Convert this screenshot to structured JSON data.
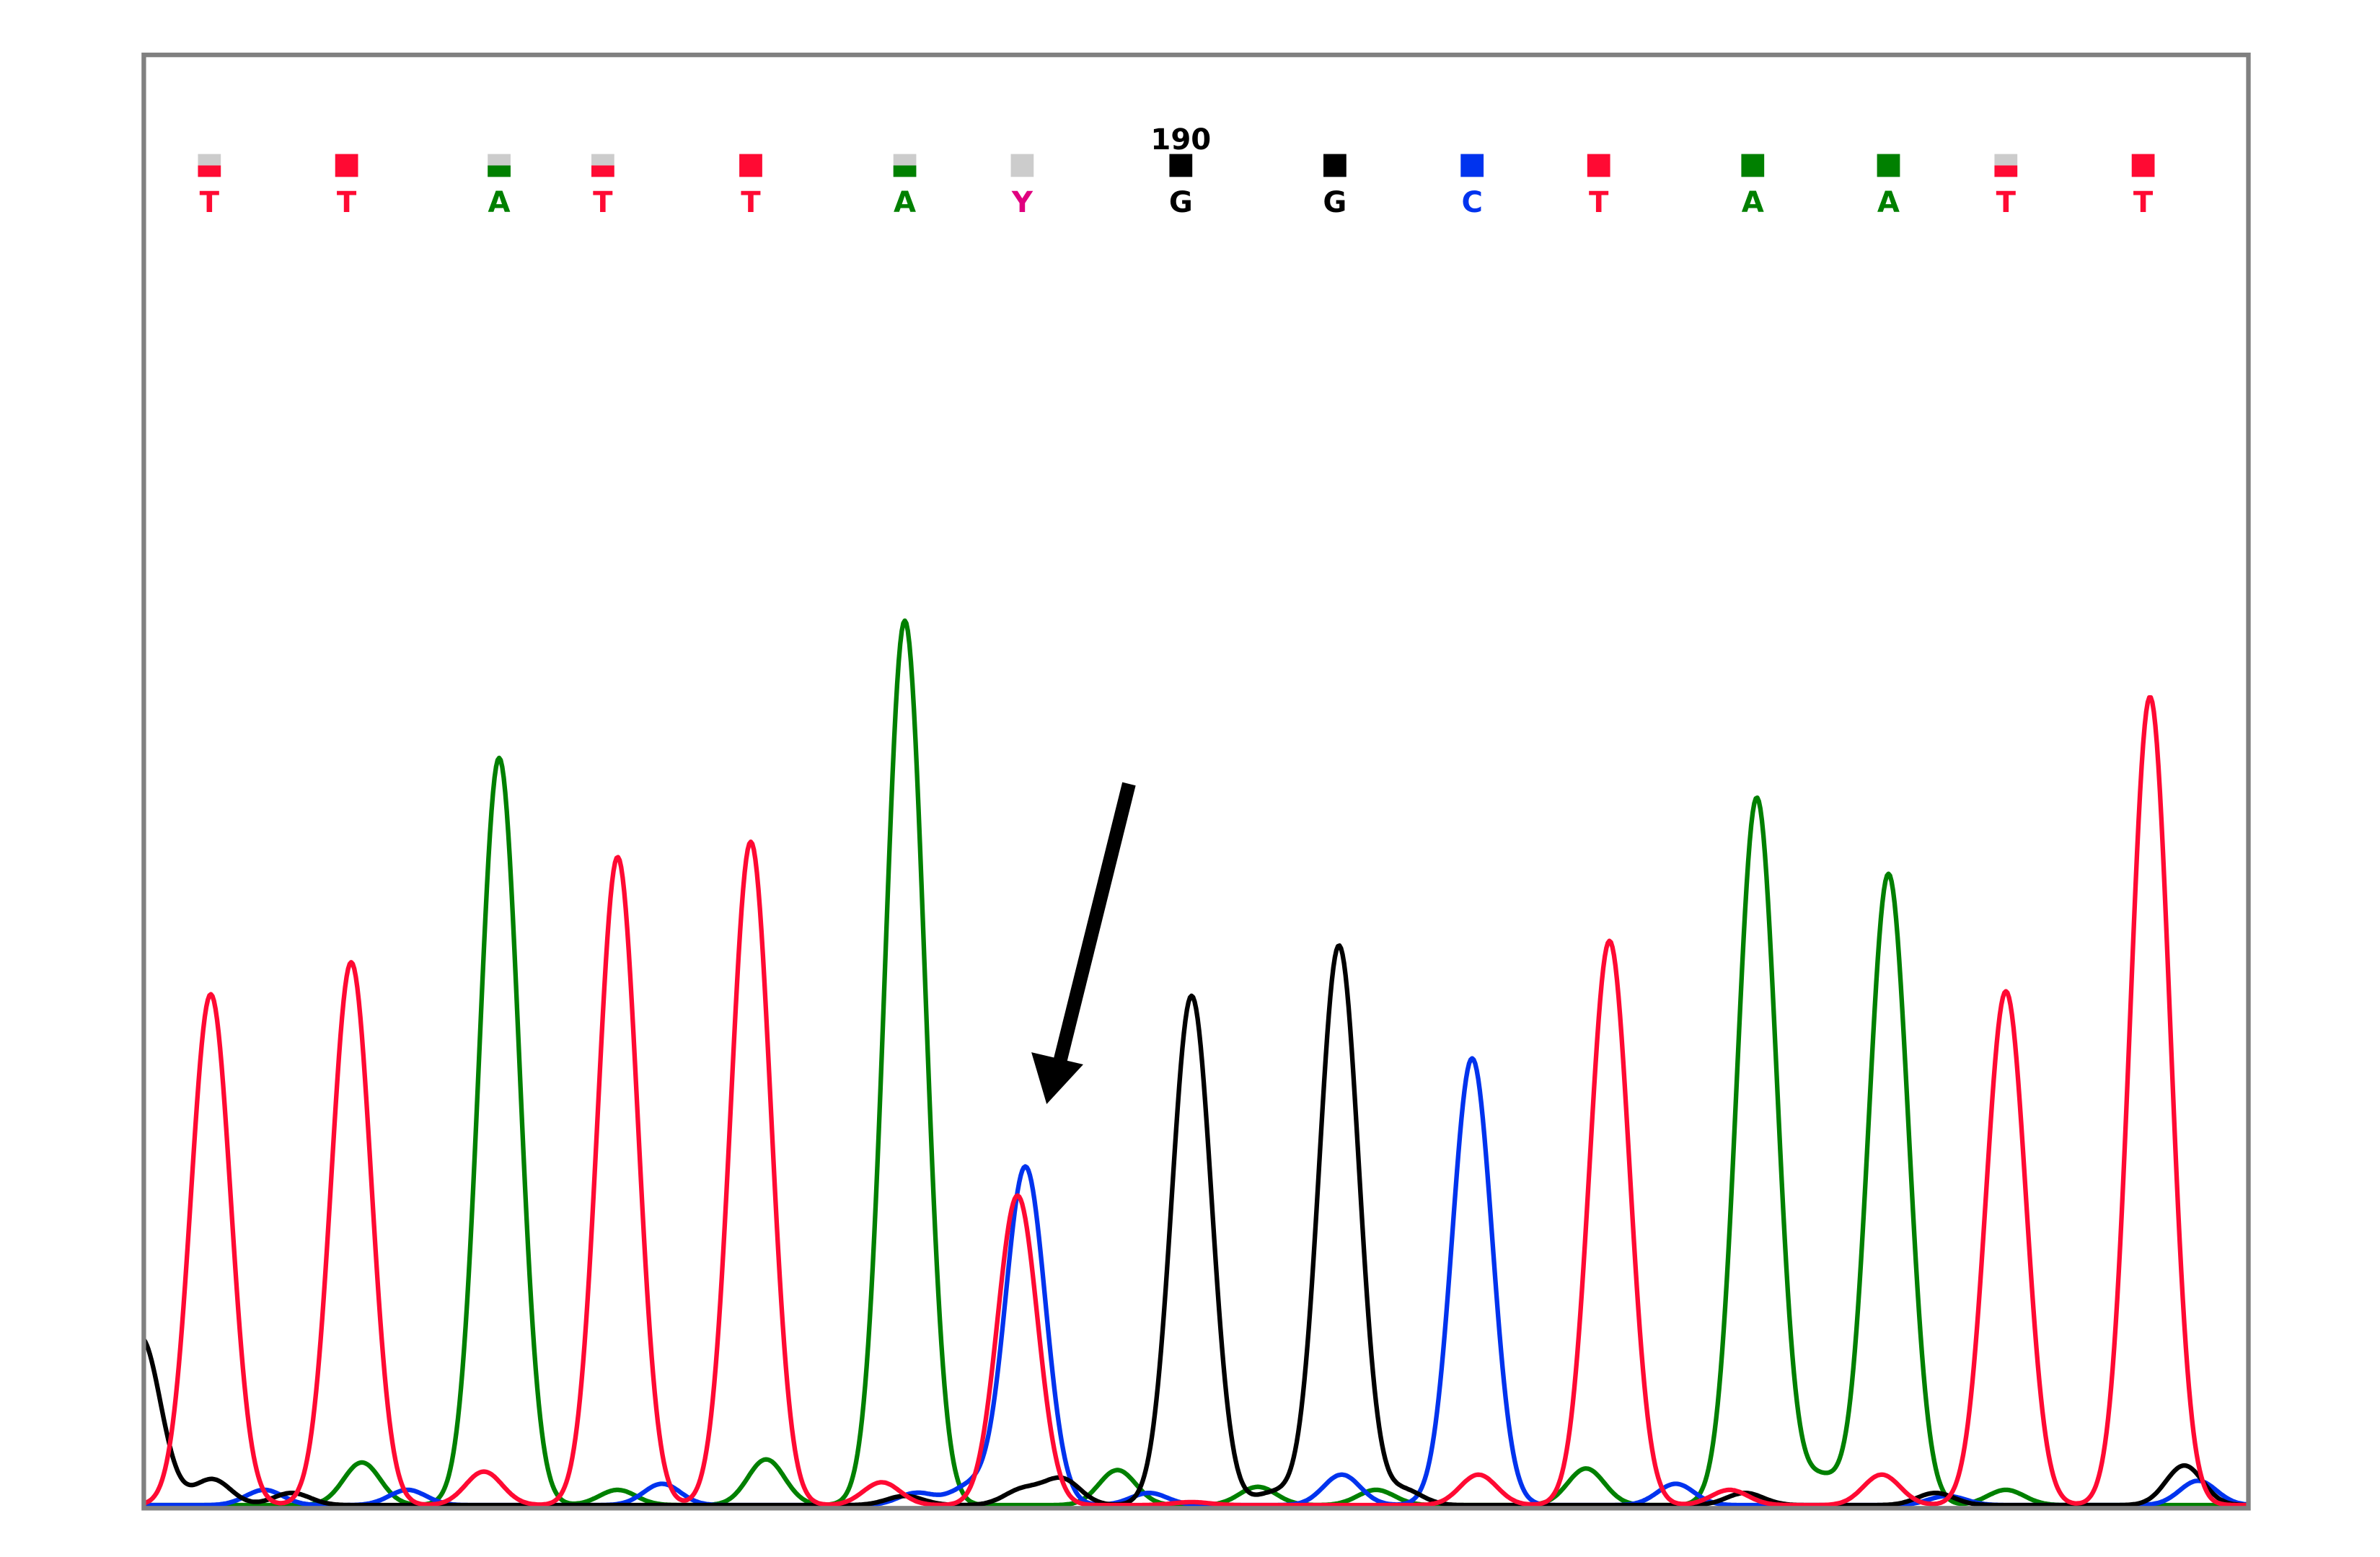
{
  "chart_data": {
    "type": "line",
    "title": "",
    "xlabel": "",
    "ylabel": "",
    "grid": false,
    "legend": "none",
    "position_label": {
      "base_index": 7,
      "text": "190"
    },
    "base_calls": [
      {
        "base": "T",
        "quality": 0.5
      },
      {
        "base": "T",
        "quality": 1
      },
      {
        "base": "A",
        "quality": 0.5
      },
      {
        "base": "T",
        "quality": 0.5
      },
      {
        "base": "T",
        "quality": 1
      },
      {
        "base": "A",
        "quality": 0.5
      },
      {
        "base": "Y",
        "quality": 0
      },
      {
        "base": "G",
        "quality": 1
      },
      {
        "base": "G",
        "quality": 1
      },
      {
        "base": "C",
        "quality": 1
      },
      {
        "base": "T",
        "quality": 1
      },
      {
        "base": "A",
        "quality": 1
      },
      {
        "base": "A",
        "quality": 1
      },
      {
        "base": "T",
        "quality": 0.5
      },
      {
        "base": "T",
        "quality": 1
      }
    ],
    "colors": {
      "A": "#008000",
      "C": "#0033ee",
      "G": "#000000",
      "T": "#ff0a33",
      "Y": "#e0007f",
      "quality_empty": "#cccccc",
      "frame": "#808080"
    },
    "series": [
      {
        "channel": "A",
        "peaks": [
          [
            2.0,
            490
          ],
          [
            5.0,
            580
          ],
          [
            11.03,
            464
          ],
          [
            12.0,
            414
          ],
          [
            1.1,
            28
          ],
          [
            4.1,
            30
          ],
          [
            6.6,
            23
          ],
          [
            7.5,
            12
          ],
          [
            9.9,
            24
          ],
          [
            11.5,
            18
          ],
          [
            13.0,
            10
          ],
          [
            3.1,
            10
          ],
          [
            8.3,
            10
          ]
        ]
      },
      {
        "channel": "C",
        "peaks": [
          [
            6.02,
            222
          ],
          [
            9.0,
            293
          ],
          [
            0.4,
            10
          ],
          [
            1.4,
            10
          ],
          [
            3.4,
            14
          ],
          [
            5.55,
            12
          ],
          [
            6.8,
            8
          ],
          [
            8.05,
            20
          ],
          [
            10.5,
            14
          ],
          [
            14.4,
            16
          ],
          [
            5.1,
            8
          ],
          [
            12.5,
            6
          ]
        ]
      },
      {
        "channel": "G",
        "peaks": [
          [
            7.07,
            334
          ],
          [
            8.03,
            367
          ],
          [
            -0.5,
            110
          ],
          [
            0.02,
            17
          ],
          [
            0.6,
            8
          ],
          [
            5.0,
            6
          ],
          [
            6.25,
            17
          ],
          [
            7.6,
            8
          ],
          [
            8.5,
            10
          ],
          [
            10.95,
            8
          ],
          [
            12.4,
            8
          ],
          [
            14.3,
            26
          ],
          [
            6.0,
            10
          ]
        ]
      },
      {
        "channel": "T",
        "peaks": [
          [
            0.01,
            335
          ],
          [
            1.03,
            356
          ],
          [
            3.1,
            425
          ],
          [
            4.0,
            435
          ],
          [
            5.96,
            203
          ],
          [
            7.07,
            2
          ],
          [
            10.07,
            370
          ],
          [
            13.0,
            337
          ],
          [
            14.05,
            530
          ],
          [
            1.9,
            22
          ],
          [
            4.85,
            15
          ],
          [
            9.05,
            20
          ],
          [
            11.95,
            20
          ],
          [
            10.85,
            10
          ]
        ]
      }
    ],
    "annotation": {
      "type": "arrow",
      "target_base_index": 6
    }
  }
}
